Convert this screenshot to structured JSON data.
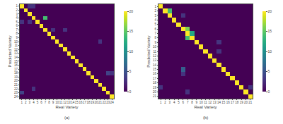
{
  "chart_data": [
    {
      "type": "heatmap",
      "title": "(a)",
      "xlabel": "Real Variety",
      "ylabel": "Predicted Variety",
      "x": [
        1,
        2,
        3,
        4,
        5,
        6,
        7,
        8,
        9,
        10,
        11,
        12,
        13,
        14,
        15,
        16,
        17,
        18,
        19,
        20,
        21,
        22,
        23,
        24
      ],
      "y": [
        1,
        2,
        3,
        4,
        5,
        6,
        7,
        8,
        9,
        10,
        11,
        12,
        13,
        14,
        15,
        16,
        17,
        18,
        19,
        20,
        21,
        22,
        23,
        24
      ],
      "cells": [
        [
          20,
          0,
          3,
          3,
          0,
          0,
          0,
          0,
          0,
          0,
          0,
          0,
          0,
          0,
          0,
          0,
          0,
          0,
          0,
          0,
          0,
          0,
          0,
          0
        ],
        [
          0,
          20,
          0,
          0,
          0,
          0,
          0,
          0,
          0,
          0,
          0,
          0,
          0,
          0,
          0,
          0,
          0,
          0,
          0,
          0,
          0,
          0,
          0,
          0
        ],
        [
          0,
          0,
          20,
          0,
          0,
          0,
          0,
          0,
          0,
          0,
          0,
          0,
          0,
          0,
          0,
          0,
          0,
          0,
          0,
          0,
          0,
          0,
          0,
          0
        ],
        [
          0,
          0,
          0,
          20,
          0,
          0,
          14,
          0,
          0,
          0,
          0,
          0,
          0,
          0,
          0,
          0,
          0,
          0,
          0,
          0,
          0,
          0,
          0,
          0
        ],
        [
          3,
          0,
          3,
          0,
          20,
          0,
          0,
          0,
          0,
          0,
          0,
          0,
          0,
          0,
          0,
          0,
          0,
          0,
          0,
          0,
          0,
          0,
          0,
          0
        ],
        [
          0,
          0,
          0,
          0,
          0,
          20,
          0,
          0,
          0,
          0,
          0,
          0,
          0,
          0,
          0,
          0,
          0,
          0,
          0,
          0,
          0,
          0,
          0,
          0
        ],
        [
          0,
          0,
          0,
          0,
          0,
          0,
          20,
          0,
          3,
          0,
          0,
          3,
          0,
          0,
          0,
          0,
          0,
          0,
          0,
          0,
          0,
          0,
          0,
          0
        ],
        [
          0,
          0,
          0,
          0,
          0,
          0,
          0,
          20,
          0,
          0,
          0,
          0,
          0,
          0,
          0,
          0,
          0,
          0,
          0,
          0,
          0,
          0,
          0,
          0
        ],
        [
          0,
          0,
          0,
          0,
          0,
          0,
          0,
          0,
          20,
          0,
          0,
          0,
          0,
          0,
          0,
          0,
          0,
          0,
          0,
          0,
          0,
          0,
          0,
          0
        ],
        [
          0,
          0,
          0,
          0,
          0,
          0,
          0,
          0,
          0,
          20,
          0,
          0,
          0,
          0,
          0,
          0,
          0,
          0,
          0,
          0,
          3,
          0,
          0,
          0
        ],
        [
          0,
          0,
          0,
          0,
          0,
          0,
          0,
          0,
          0,
          0,
          20,
          0,
          0,
          0,
          0,
          0,
          0,
          0,
          0,
          0,
          0,
          0,
          0,
          0
        ],
        [
          0,
          0,
          0,
          0,
          0,
          0,
          0,
          0,
          0,
          0,
          0,
          20,
          0,
          0,
          0,
          0,
          0,
          0,
          0,
          0,
          0,
          0,
          0,
          0
        ],
        [
          0,
          0,
          0,
          0,
          0,
          0,
          0,
          0,
          0,
          0,
          0,
          0,
          20,
          0,
          0,
          0,
          0,
          0,
          0,
          0,
          0,
          0,
          0,
          0
        ],
        [
          0,
          0,
          0,
          0,
          0,
          0,
          0,
          0,
          0,
          0,
          0,
          0,
          0,
          20,
          0,
          0,
          0,
          0,
          0,
          0,
          0,
          0,
          0,
          0
        ],
        [
          0,
          0,
          0,
          0,
          0,
          0,
          0,
          0,
          0,
          0,
          0,
          0,
          0,
          0,
          20,
          0,
          0,
          0,
          0,
          0,
          0,
          0,
          0,
          0
        ],
        [
          0,
          0,
          0,
          0,
          0,
          0,
          0,
          0,
          0,
          0,
          0,
          0,
          0,
          0,
          0,
          20,
          0,
          0,
          0,
          0,
          0,
          0,
          0,
          0
        ],
        [
          0,
          0,
          0,
          0,
          0,
          0,
          0,
          0,
          0,
          0,
          0,
          0,
          0,
          0,
          0,
          0,
          20,
          0,
          0,
          0,
          0,
          0,
          0,
          0
        ],
        [
          0,
          0,
          0,
          0,
          0,
          0,
          0,
          0,
          0,
          0,
          0,
          0,
          0,
          0,
          0,
          0,
          0,
          20,
          0,
          0,
          0,
          0,
          4,
          3
        ],
        [
          0,
          0,
          0,
          0,
          0,
          0,
          0,
          0,
          0,
          0,
          0,
          0,
          0,
          0,
          0,
          0,
          0,
          0,
          20,
          0,
          0,
          0,
          0,
          0
        ],
        [
          0,
          0,
          0,
          0,
          0,
          0,
          0,
          0,
          0,
          0,
          0,
          0,
          0,
          0,
          0,
          0,
          0,
          0,
          0,
          20,
          0,
          0,
          0,
          0
        ],
        [
          0,
          0,
          0,
          0,
          0,
          0,
          0,
          0,
          0,
          0,
          0,
          0,
          0,
          0,
          0,
          0,
          0,
          0,
          0,
          0,
          20,
          0,
          0,
          0
        ],
        [
          0,
          0,
          0,
          3,
          0,
          0,
          0,
          0,
          0,
          0,
          0,
          0,
          0,
          0,
          0,
          0,
          0,
          0,
          0,
          0,
          0,
          20,
          0,
          0
        ],
        [
          4,
          0,
          0,
          0,
          0,
          0,
          0,
          0,
          0,
          0,
          0,
          0,
          0,
          0,
          0,
          0,
          0,
          0,
          0,
          0,
          0,
          0,
          20,
          0
        ],
        [
          0,
          0,
          0,
          0,
          0,
          0,
          0,
          0,
          0,
          0,
          0,
          0,
          0,
          0,
          0,
          0,
          0,
          0,
          0,
          0,
          0,
          0,
          0,
          20
        ]
      ],
      "xlim": [
        0.5,
        24.5
      ],
      "ylim": [
        24.5,
        0.5
      ],
      "xticks": [
        1,
        2,
        3,
        4,
        5,
        6,
        7,
        8,
        9,
        10,
        11,
        12,
        13,
        14,
        15,
        16,
        17,
        18,
        19,
        20,
        21,
        22,
        23,
        24
      ],
      "yticks": [
        1,
        2,
        3,
        4,
        5,
        6,
        7,
        8,
        9,
        10,
        11,
        12,
        13,
        14,
        15,
        16,
        17,
        18,
        19,
        20,
        21,
        22,
        23,
        24
      ],
      "color": "Viridis",
      "color_range": [
        0,
        20
      ],
      "color_ticks": [
        0,
        5,
        10,
        15,
        20
      ]
    },
    {
      "type": "heatmap",
      "title": "(b)",
      "xlabel": "Real Variety",
      "ylabel": "Predicted Variety",
      "x": [
        1,
        2,
        3,
        4,
        5,
        6,
        7,
        8,
        9,
        10,
        11,
        12,
        13,
        14,
        15,
        16,
        17,
        18,
        19,
        20,
        21
      ],
      "y": [
        1,
        2,
        3,
        4,
        5,
        6,
        7,
        8,
        9,
        10,
        11,
        12,
        13,
        14,
        15,
        16,
        17,
        18,
        19,
        20,
        21
      ],
      "cells": [
        [
          20,
          0,
          0,
          0,
          0,
          0,
          0,
          0,
          0,
          0,
          0,
          0,
          0,
          0,
          0,
          0,
          0,
          0,
          0,
          0,
          0
        ],
        [
          0,
          20,
          14,
          0,
          0,
          0,
          0,
          0,
          0,
          0,
          0,
          0,
          0,
          0,
          0,
          0,
          0,
          0,
          0,
          0,
          0
        ],
        [
          0,
          0,
          20,
          0,
          0,
          3,
          0,
          0,
          0,
          0,
          0,
          0,
          0,
          0,
          0,
          0,
          0,
          0,
          0,
          0,
          0
        ],
        [
          0,
          0,
          0,
          20,
          0,
          0,
          0,
          0,
          0,
          0,
          0,
          0,
          0,
          0,
          0,
          0,
          0,
          0,
          0,
          0,
          0
        ],
        [
          0,
          0,
          0,
          0,
          20,
          0,
          0,
          0,
          0,
          0,
          0,
          0,
          0,
          0,
          0,
          0,
          0,
          0,
          0,
          0,
          0
        ],
        [
          0,
          0,
          0,
          0,
          0,
          20,
          16,
          0,
          0,
          0,
          0,
          0,
          0,
          0,
          0,
          0,
          0,
          0,
          0,
          0,
          0
        ],
        [
          0,
          0,
          0,
          0,
          0,
          0,
          20,
          12,
          0,
          0,
          0,
          0,
          0,
          0,
          0,
          0,
          0,
          0,
          0,
          0,
          0
        ],
        [
          0,
          0,
          0,
          0,
          0,
          0,
          14,
          20,
          0,
          0,
          0,
          0,
          0,
          0,
          0,
          0,
          0,
          0,
          0,
          0,
          0
        ],
        [
          0,
          0,
          0,
          0,
          0,
          0,
          0,
          0,
          20,
          0,
          0,
          0,
          0,
          3,
          0,
          0,
          0,
          0,
          0,
          0,
          0
        ],
        [
          0,
          0,
          0,
          0,
          0,
          0,
          0,
          0,
          0,
          20,
          0,
          0,
          0,
          0,
          0,
          0,
          0,
          0,
          0,
          0,
          0
        ],
        [
          0,
          0,
          0,
          0,
          0,
          0,
          0,
          0,
          0,
          0,
          20,
          0,
          0,
          3,
          0,
          0,
          0,
          0,
          0,
          0,
          0
        ],
        [
          0,
          0,
          0,
          0,
          0,
          0,
          0,
          0,
          0,
          0,
          0,
          20,
          0,
          0,
          0,
          0,
          0,
          0,
          0,
          0,
          0
        ],
        [
          0,
          0,
          0,
          0,
          0,
          0,
          0,
          0,
          0,
          0,
          0,
          0,
          20,
          0,
          0,
          0,
          0,
          0,
          0,
          0,
          0
        ],
        [
          0,
          0,
          0,
          0,
          0,
          0,
          0,
          0,
          0,
          0,
          0,
          0,
          0,
          20,
          0,
          0,
          0,
          0,
          0,
          0,
          0
        ],
        [
          0,
          0,
          0,
          0,
          0,
          6,
          0,
          0,
          0,
          0,
          0,
          0,
          0,
          0,
          20,
          0,
          0,
          0,
          0,
          0,
          0
        ],
        [
          0,
          0,
          0,
          0,
          0,
          3,
          0,
          0,
          0,
          0,
          0,
          0,
          0,
          0,
          0,
          20,
          0,
          0,
          0,
          0,
          0
        ],
        [
          0,
          0,
          0,
          0,
          0,
          0,
          0,
          0,
          0,
          0,
          0,
          0,
          0,
          0,
          0,
          0,
          20,
          0,
          0,
          0,
          0
        ],
        [
          0,
          0,
          0,
          0,
          0,
          0,
          0,
          0,
          0,
          0,
          0,
          0,
          0,
          0,
          0,
          0,
          0,
          20,
          0,
          0,
          0
        ],
        [
          3,
          0,
          0,
          0,
          0,
          0,
          0,
          0,
          0,
          0,
          0,
          0,
          0,
          0,
          0,
          0,
          0,
          0,
          20,
          0,
          3
        ],
        [
          0,
          0,
          0,
          0,
          0,
          0,
          3,
          0,
          0,
          0,
          0,
          0,
          0,
          0,
          0,
          0,
          0,
          0,
          0,
          20,
          0
        ],
        [
          0,
          0,
          0,
          0,
          0,
          0,
          0,
          0,
          0,
          0,
          0,
          0,
          0,
          0,
          0,
          0,
          0,
          0,
          0,
          0,
          20
        ]
      ],
      "xlim": [
        0.5,
        21.5
      ],
      "ylim": [
        21.5,
        0.5
      ],
      "xticks": [
        1,
        2,
        3,
        4,
        5,
        6,
        7,
        8,
        9,
        10,
        11,
        12,
        13,
        14,
        15,
        16,
        17,
        18,
        19,
        20,
        21
      ],
      "yticks": [
        1,
        2,
        3,
        4,
        5,
        6,
        7,
        8,
        9,
        10,
        11,
        12,
        13,
        14,
        15,
        16,
        17,
        18,
        19,
        20,
        21
      ],
      "color": "Viridis",
      "color_range": [
        0,
        20
      ],
      "color_ticks": [
        0,
        5,
        10,
        15,
        20
      ]
    }
  ]
}
